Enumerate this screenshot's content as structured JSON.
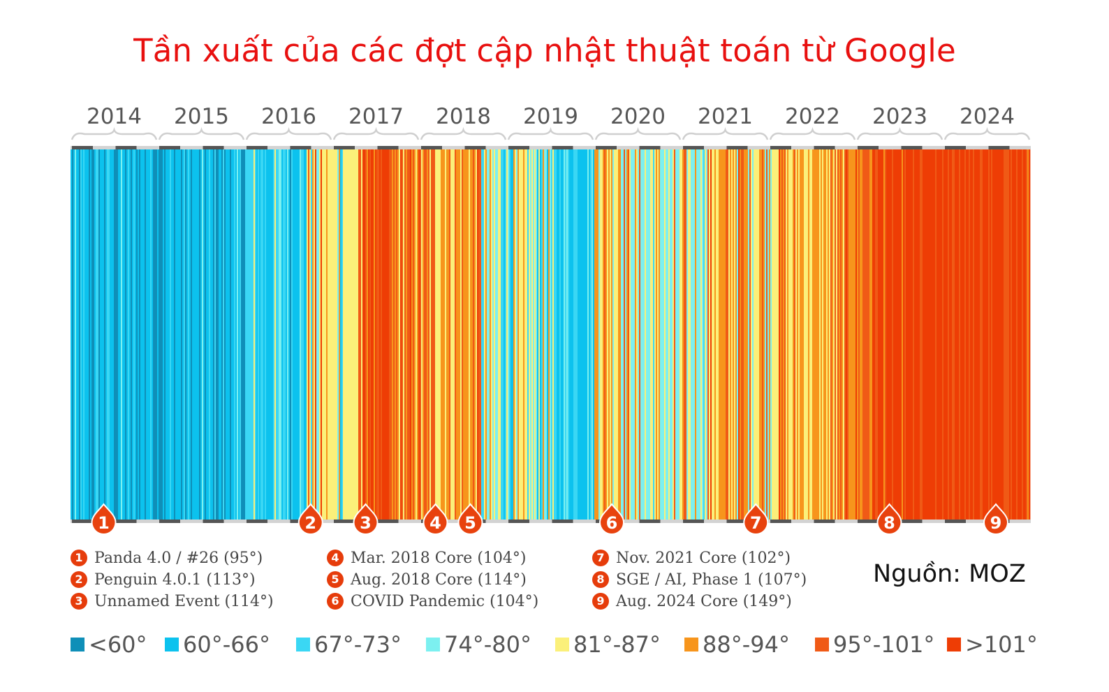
{
  "title": "Tần xuất của các đợt cập nhật thuật toán từ Google",
  "source": "Nguồn: MOZ",
  "chart_data": {
    "type": "heatmap",
    "description": "Warming-stripes chart: each stripe is one day; color encodes Google algorithm volatility temperature (°F)",
    "years": [
      "2014",
      "2015",
      "2016",
      "2017",
      "2018",
      "2019",
      "2020",
      "2021",
      "2022",
      "2023",
      "2024"
    ],
    "legend": [
      {
        "label": "<60°",
        "color": "#0f8fb8"
      },
      {
        "label": "60°-66°",
        "color": "#0cc2ee"
      },
      {
        "label": "67°-73°",
        "color": "#3ad7f4"
      },
      {
        "label": "74°-80°",
        "color": "#7cf0f0"
      },
      {
        "label": "81°-87°",
        "color": "#fbf07a"
      },
      {
        "label": "88°-94°",
        "color": "#f7951c"
      },
      {
        "label": "95°-101°",
        "color": "#f05a16"
      },
      {
        "label": ">101°",
        "color": "#ee3d05"
      }
    ],
    "events": [
      {
        "num": "1",
        "label": "Panda 4.0 / #26 (95°)",
        "year_position": 2014.38
      },
      {
        "num": "2",
        "label": "Penguin 4.0.1 (113°)",
        "year_position": 2016.75
      },
      {
        "num": "3",
        "label": "Unnamed Event (114°)",
        "year_position": 2017.38
      },
      {
        "num": "4",
        "label": "Mar. 2018 Core (104°)",
        "year_position": 2018.18
      },
      {
        "num": "5",
        "label": "Aug. 2018 Core (114°)",
        "year_position": 2018.58
      },
      {
        "num": "6",
        "label": "COVID Pandemic (104°)",
        "year_position": 2020.2
      },
      {
        "num": "7",
        "label": "Nov. 2021 Core (102°)",
        "year_position": 2021.85
      },
      {
        "num": "8",
        "label": "SGE / AI, Phase 1 (107°)",
        "year_position": 2023.38
      },
      {
        "num": "9",
        "label": "Aug. 2024 Core (149°)",
        "year_position": 2024.6
      }
    ],
    "period_profile": [
      {
        "start": 2014.0,
        "end": 2016.0,
        "weights": [
          0.32,
          0.5,
          0.14,
          0.04,
          0,
          0,
          0,
          0
        ]
      },
      {
        "start": 2016.0,
        "end": 2016.7,
        "weights": [
          0.08,
          0.34,
          0.3,
          0.18,
          0.1,
          0,
          0,
          0
        ]
      },
      {
        "start": 2016.7,
        "end": 2017.35,
        "weights": [
          0,
          0.05,
          0.08,
          0.12,
          0.5,
          0.17,
          0.05,
          0.03
        ]
      },
      {
        "start": 2017.35,
        "end": 2017.65,
        "weights": [
          0,
          0,
          0,
          0,
          0,
          0.05,
          0.35,
          0.6
        ]
      },
      {
        "start": 2017.65,
        "end": 2018.0,
        "weights": [
          0,
          0,
          0,
          0,
          0.15,
          0.45,
          0.3,
          0.1
        ]
      },
      {
        "start": 2018.0,
        "end": 2018.7,
        "weights": [
          0,
          0,
          0,
          0,
          0.28,
          0.42,
          0.22,
          0.08
        ]
      },
      {
        "start": 2018.7,
        "end": 2019.5,
        "weights": [
          0,
          0.12,
          0.22,
          0.3,
          0.28,
          0.08,
          0,
          0
        ]
      },
      {
        "start": 2019.5,
        "end": 2020.0,
        "weights": [
          0,
          0.4,
          0.4,
          0.15,
          0.05,
          0,
          0,
          0
        ]
      },
      {
        "start": 2020.0,
        "end": 2020.4,
        "weights": [
          0,
          0,
          0,
          0.1,
          0.3,
          0.4,
          0.15,
          0.05
        ]
      },
      {
        "start": 2020.4,
        "end": 2021.3,
        "weights": [
          0,
          0,
          0.05,
          0.48,
          0.3,
          0.12,
          0.05,
          0
        ]
      },
      {
        "start": 2021.3,
        "end": 2022.2,
        "weights": [
          0,
          0,
          0,
          0.05,
          0.35,
          0.35,
          0.2,
          0.05
        ]
      },
      {
        "start": 2022.2,
        "end": 2022.9,
        "weights": [
          0,
          0,
          0,
          0,
          0.45,
          0.4,
          0.12,
          0.03
        ]
      },
      {
        "start": 2022.9,
        "end": 2023.2,
        "weights": [
          0,
          0,
          0,
          0,
          0.08,
          0.32,
          0.4,
          0.2
        ]
      },
      {
        "start": 2023.2,
        "end": 2025.0,
        "weights": [
          0,
          0,
          0,
          0,
          0,
          0.03,
          0.32,
          0.65
        ]
      }
    ]
  }
}
